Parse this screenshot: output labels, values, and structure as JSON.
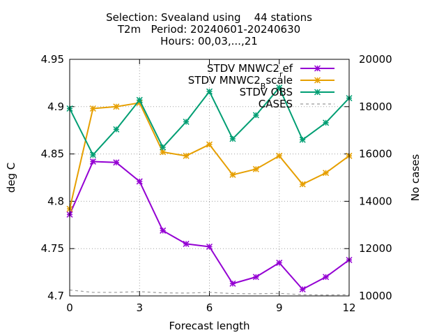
{
  "chart_data": {
    "type": "line",
    "title_lines": [
      "Selection: Svealand using    44 stations",
      "T2m   Period: 20240601-20240630",
      "Hours: 00,03,...,21"
    ],
    "xlabel": "Forecast length",
    "ylabel": "deg C",
    "y2label": "No cases",
    "xlim": [
      0,
      12
    ],
    "ylim": [
      4.7,
      4.95
    ],
    "y2lim": [
      10000,
      20000
    ],
    "x_ticks": [
      0,
      3,
      6,
      9,
      12
    ],
    "y_ticks": [
      4.7,
      4.75,
      4.8,
      4.85,
      4.9,
      4.95
    ],
    "y2_ticks": [
      10000,
      12000,
      14000,
      16000,
      18000,
      20000
    ],
    "grid": true,
    "legend_position": "top-right",
    "x": [
      0,
      1,
      2,
      3,
      4,
      5,
      6,
      7,
      8,
      9,
      10,
      11,
      12
    ],
    "series": [
      {
        "name_main": "STDV MNWC2",
        "name_sub": "r",
        "name_tail": "ef",
        "color": "#9400d3",
        "axis": "y",
        "style": "line-points",
        "values": [
          4.786,
          4.842,
          4.841,
          4.821,
          4.769,
          4.755,
          4.752,
          4.713,
          4.72,
          4.735,
          4.707,
          4.72,
          4.738
        ]
      },
      {
        "name_main": "STDV MNWC2",
        "name_sub": "B",
        "name_tail": "scale",
        "color": "#e69f00",
        "axis": "y",
        "style": "line-points",
        "values": [
          4.792,
          4.898,
          4.9,
          4.904,
          4.852,
          4.848,
          4.86,
          4.828,
          4.834,
          4.848,
          4.818,
          4.83,
          4.848
        ]
      },
      {
        "name_main": "STDV OBS",
        "name_sub": "",
        "name_tail": "",
        "color": "#009e73",
        "axis": "y",
        "style": "line-points",
        "values": [
          4.898,
          4.849,
          4.876,
          4.907,
          4.857,
          4.884,
          4.916,
          4.866,
          4.891,
          4.92,
          4.865,
          4.883,
          4.909
        ]
      },
      {
        "name_main": "CASES",
        "name_sub": "",
        "name_tail": "",
        "color": "#999999",
        "axis": "y2",
        "style": "dashed",
        "values": [
          10250,
          10150,
          10150,
          10180,
          10130,
          10120,
          10150,
          10100,
          10090,
          10110,
          10050,
          10040,
          10050
        ]
      }
    ]
  }
}
